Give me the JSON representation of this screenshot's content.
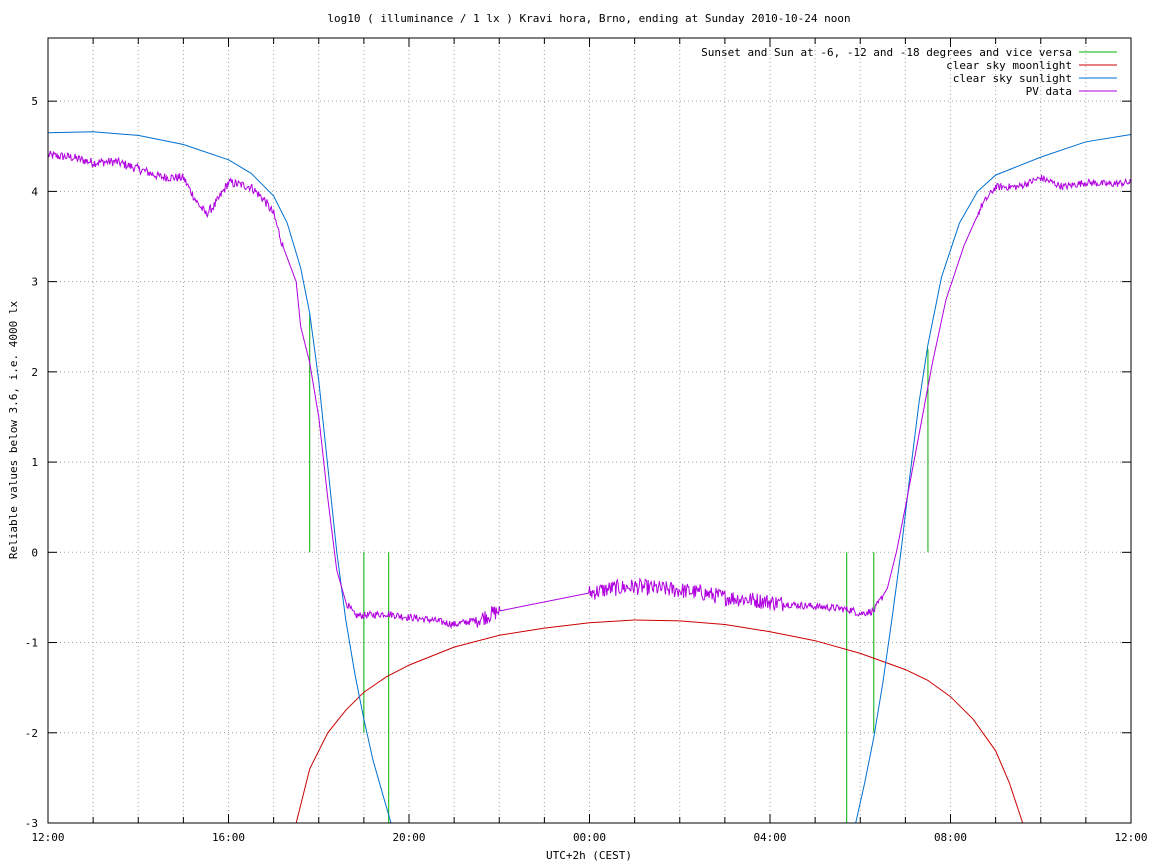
{
  "chart_data": {
    "type": "line",
    "title": "log10 ( illuminance / 1 lx ) Kravi hora, Brno, ending at Sunday 2010-10-24 noon",
    "xlabel": "UTC+2h (CEST)",
    "ylabel": "Reliable values below 3.6, i.e. 4000 lx",
    "x_unit": "hours (local time CEST), 12:00 to 12:00 next day",
    "xlim": [
      12,
      36
    ],
    "ylim": [
      -3,
      5.7
    ],
    "grid": true,
    "legend_position": "top-right",
    "x_ticks": [
      {
        "value": 12,
        "label": "12:00"
      },
      {
        "value": 16,
        "label": "16:00"
      },
      {
        "value": 20,
        "label": "20:00"
      },
      {
        "value": 24,
        "label": "00:00"
      },
      {
        "value": 28,
        "label": "04:00"
      },
      {
        "value": 32,
        "label": "08:00"
      },
      {
        "value": 36,
        "label": "12:00"
      }
    ],
    "x_minor_grid_step": 1,
    "y_ticks": [
      {
        "value": -3,
        "label": "-3"
      },
      {
        "value": -2,
        "label": "-2"
      },
      {
        "value": -1,
        "label": "-1"
      },
      {
        "value": 0,
        "label": "0"
      },
      {
        "value": 1,
        "label": "1"
      },
      {
        "value": 2,
        "label": "2"
      },
      {
        "value": 3,
        "label": "3"
      },
      {
        "value": 4,
        "label": "4"
      },
      {
        "value": 5,
        "label": "5"
      }
    ],
    "series": [
      {
        "name": "Sunset and Sun at -6, -12 and -18 degrees and vice versa",
        "color": "#00b000",
        "kind": "impulses",
        "points": [
          {
            "x": 17.8,
            "y0": 0,
            "y1": 2.65
          },
          {
            "x": 19.0,
            "y0": 0,
            "y1": -2.0
          },
          {
            "x": 19.55,
            "y0": 0,
            "y1": -3
          },
          {
            "x": 29.7,
            "y0": 0,
            "y1": -3
          },
          {
            "x": 30.3,
            "y0": 0,
            "y1": -2.0
          },
          {
            "x": 31.5,
            "y0": 0,
            "y1": 2.25
          }
        ]
      },
      {
        "name": "clear sky moonlight",
        "color": "#cc0000",
        "kind": "line",
        "points": [
          [
            17.5,
            -3.0
          ],
          [
            17.8,
            -2.4
          ],
          [
            18.2,
            -2.0
          ],
          [
            18.6,
            -1.75
          ],
          [
            19.0,
            -1.55
          ],
          [
            19.5,
            -1.38
          ],
          [
            20.0,
            -1.25
          ],
          [
            21.0,
            -1.05
          ],
          [
            22.0,
            -0.92
          ],
          [
            23.0,
            -0.84
          ],
          [
            24.0,
            -0.78
          ],
          [
            25.0,
            -0.75
          ],
          [
            26.0,
            -0.76
          ],
          [
            27.0,
            -0.8
          ],
          [
            28.0,
            -0.88
          ],
          [
            29.0,
            -0.98
          ],
          [
            30.0,
            -1.12
          ],
          [
            31.0,
            -1.3
          ],
          [
            31.5,
            -1.42
          ],
          [
            32.0,
            -1.6
          ],
          [
            32.5,
            -1.85
          ],
          [
            33.0,
            -2.2
          ],
          [
            33.3,
            -2.55
          ],
          [
            33.6,
            -3.0
          ]
        ]
      },
      {
        "name": "clear sky sunlight",
        "color": "#0070d0",
        "kind": "line",
        "points": [
          [
            12.0,
            4.65
          ],
          [
            13.0,
            4.66
          ],
          [
            14.0,
            4.62
          ],
          [
            15.0,
            4.52
          ],
          [
            16.0,
            4.35
          ],
          [
            16.5,
            4.2
          ],
          [
            17.0,
            3.95
          ],
          [
            17.3,
            3.65
          ],
          [
            17.6,
            3.15
          ],
          [
            17.8,
            2.65
          ],
          [
            18.0,
            1.9
          ],
          [
            18.2,
            0.95
          ],
          [
            18.4,
            0.0
          ],
          [
            18.6,
            -0.75
          ],
          [
            18.8,
            -1.35
          ],
          [
            19.0,
            -1.85
          ],
          [
            19.2,
            -2.3
          ],
          [
            19.4,
            -2.65
          ],
          [
            19.6,
            -3.0
          ],
          [
            29.9,
            -3.0
          ],
          [
            30.1,
            -2.55
          ],
          [
            30.3,
            -2.05
          ],
          [
            30.5,
            -1.45
          ],
          [
            30.7,
            -0.75
          ],
          [
            30.9,
            0.0
          ],
          [
            31.1,
            0.85
          ],
          [
            31.3,
            1.65
          ],
          [
            31.5,
            2.3
          ],
          [
            31.8,
            3.05
          ],
          [
            32.2,
            3.65
          ],
          [
            32.6,
            4.0
          ],
          [
            33.0,
            4.18
          ],
          [
            34.0,
            4.38
          ],
          [
            35.0,
            4.55
          ],
          [
            36.0,
            4.63
          ]
        ]
      },
      {
        "name": "PV data",
        "color": "#b000e0",
        "kind": "line",
        "noise": [
          {
            "from": 12.0,
            "to": 17.2,
            "amp": 0.05
          },
          {
            "from": 18.6,
            "to": 21.5,
            "amp": 0.04
          },
          {
            "from": 21.5,
            "to": 22.0,
            "amp": 0.09
          },
          {
            "from": 24.0,
            "to": 28.3,
            "amp": 0.09
          },
          {
            "from": 28.3,
            "to": 30.5,
            "amp": 0.04
          },
          {
            "from": 32.6,
            "to": 36.0,
            "amp": 0.04
          }
        ],
        "points": [
          [
            12.0,
            4.4
          ],
          [
            12.5,
            4.38
          ],
          [
            13.0,
            4.32
          ],
          [
            13.5,
            4.33
          ],
          [
            14.0,
            4.25
          ],
          [
            14.5,
            4.16
          ],
          [
            15.0,
            4.15
          ],
          [
            15.3,
            3.88
          ],
          [
            15.5,
            3.75
          ],
          [
            15.7,
            3.85
          ],
          [
            16.0,
            4.1
          ],
          [
            16.5,
            4.05
          ],
          [
            16.8,
            3.9
          ],
          [
            17.0,
            3.75
          ],
          [
            17.2,
            3.4
          ],
          [
            17.5,
            3.0
          ],
          [
            17.6,
            2.5
          ],
          [
            17.8,
            2.1
          ],
          [
            18.0,
            1.5
          ],
          [
            18.2,
            0.6
          ],
          [
            18.4,
            -0.2
          ],
          [
            18.6,
            -0.55
          ],
          [
            18.8,
            -0.7
          ],
          [
            19.0,
            -0.7
          ],
          [
            19.5,
            -0.68
          ],
          [
            20.0,
            -0.72
          ],
          [
            20.5,
            -0.75
          ],
          [
            21.0,
            -0.8
          ],
          [
            21.5,
            -0.75
          ],
          [
            22.0,
            -0.65
          ],
          [
            22.5,
            -0.6
          ],
          [
            23.0,
            -0.55
          ],
          [
            23.5,
            -0.5
          ],
          [
            24.0,
            -0.45
          ],
          [
            24.5,
            -0.4
          ],
          [
            25.0,
            -0.38
          ],
          [
            25.5,
            -0.4
          ],
          [
            26.0,
            -0.42
          ],
          [
            26.5,
            -0.45
          ],
          [
            27.0,
            -0.5
          ],
          [
            27.5,
            -0.52
          ],
          [
            28.0,
            -0.55
          ],
          [
            28.5,
            -0.58
          ],
          [
            29.0,
            -0.6
          ],
          [
            29.5,
            -0.62
          ],
          [
            29.8,
            -0.64
          ],
          [
            30.0,
            -0.68
          ],
          [
            30.3,
            -0.65
          ],
          [
            30.6,
            -0.4
          ],
          [
            30.8,
            0.0
          ],
          [
            31.0,
            0.5
          ],
          [
            31.3,
            1.3
          ],
          [
            31.6,
            2.1
          ],
          [
            31.9,
            2.8
          ],
          [
            32.3,
            3.4
          ],
          [
            32.7,
            3.85
          ],
          [
            33.0,
            4.05
          ],
          [
            33.5,
            4.05
          ],
          [
            34.0,
            4.15
          ],
          [
            34.5,
            4.05
          ],
          [
            35.0,
            4.1
          ],
          [
            35.5,
            4.08
          ],
          [
            36.0,
            4.1
          ]
        ]
      }
    ]
  }
}
